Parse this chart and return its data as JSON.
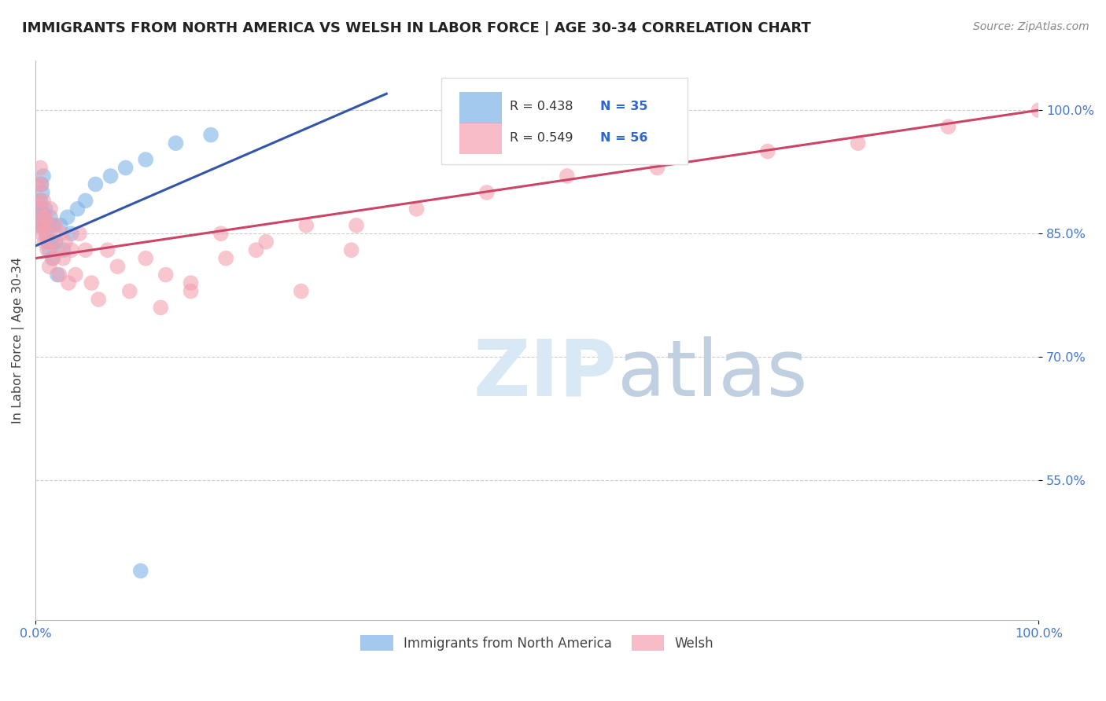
{
  "title": "IMMIGRANTS FROM NORTH AMERICA VS WELSH IN LABOR FORCE | AGE 30-34 CORRELATION CHART",
  "source": "Source: ZipAtlas.com",
  "ylabel": "In Labor Force | Age 30-34",
  "xlim": [
    0.0,
    1.0
  ],
  "ylim": [
    0.38,
    1.06
  ],
  "yticks": [
    0.55,
    0.7,
    0.85,
    1.0
  ],
  "ytick_labels": [
    "55.0%",
    "70.0%",
    "85.0%",
    "100.0%"
  ],
  "blue_color": "#7EB3E8",
  "pink_color": "#F4A0B0",
  "blue_line_color": "#3355AA",
  "pink_line_color": "#CC4466",
  "legend_r_blue": "R = 0.438",
  "legend_n_blue": "N = 35",
  "legend_r_pink": "R = 0.549",
  "legend_n_pink": "N = 56",
  "blue_x": [
    0.003,
    0.004,
    0.005,
    0.005,
    0.006,
    0.006,
    0.007,
    0.008,
    0.008,
    0.009,
    0.01,
    0.01,
    0.011,
    0.012,
    0.013,
    0.014,
    0.015,
    0.016,
    0.017,
    0.018,
    0.02,
    0.022,
    0.025,
    0.028,
    0.032,
    0.036,
    0.042,
    0.05,
    0.06,
    0.075,
    0.09,
    0.11,
    0.14,
    0.175,
    0.105
  ],
  "blue_y": [
    0.86,
    0.88,
    0.89,
    0.87,
    0.91,
    0.88,
    0.9,
    0.86,
    0.92,
    0.87,
    0.88,
    0.86,
    0.85,
    0.84,
    0.86,
    0.83,
    0.87,
    0.84,
    0.82,
    0.86,
    0.84,
    0.8,
    0.86,
    0.83,
    0.87,
    0.85,
    0.88,
    0.89,
    0.91,
    0.92,
    0.93,
    0.94,
    0.96,
    0.97,
    0.44
  ],
  "pink_x": [
    0.002,
    0.003,
    0.004,
    0.005,
    0.005,
    0.006,
    0.007,
    0.007,
    0.008,
    0.008,
    0.009,
    0.01,
    0.011,
    0.012,
    0.013,
    0.014,
    0.015,
    0.016,
    0.018,
    0.02,
    0.022,
    0.024,
    0.026,
    0.028,
    0.03,
    0.033,
    0.036,
    0.04,
    0.044,
    0.05,
    0.056,
    0.063,
    0.072,
    0.082,
    0.094,
    0.11,
    0.13,
    0.155,
    0.185,
    0.22,
    0.265,
    0.315,
    0.125,
    0.155,
    0.19,
    0.23,
    0.27,
    0.32,
    0.38,
    0.45,
    0.53,
    0.62,
    0.73,
    0.82,
    0.91,
    1.0
  ],
  "pink_y": [
    0.91,
    0.89,
    0.88,
    0.93,
    0.86,
    0.91,
    0.87,
    0.85,
    0.89,
    0.86,
    0.84,
    0.87,
    0.85,
    0.83,
    0.86,
    0.81,
    0.88,
    0.84,
    0.82,
    0.86,
    0.83,
    0.8,
    0.85,
    0.82,
    0.84,
    0.79,
    0.83,
    0.8,
    0.85,
    0.83,
    0.79,
    0.77,
    0.83,
    0.81,
    0.78,
    0.82,
    0.8,
    0.78,
    0.85,
    0.83,
    0.78,
    0.83,
    0.76,
    0.79,
    0.82,
    0.84,
    0.86,
    0.86,
    0.88,
    0.9,
    0.92,
    0.93,
    0.95,
    0.96,
    0.98,
    1.0
  ]
}
